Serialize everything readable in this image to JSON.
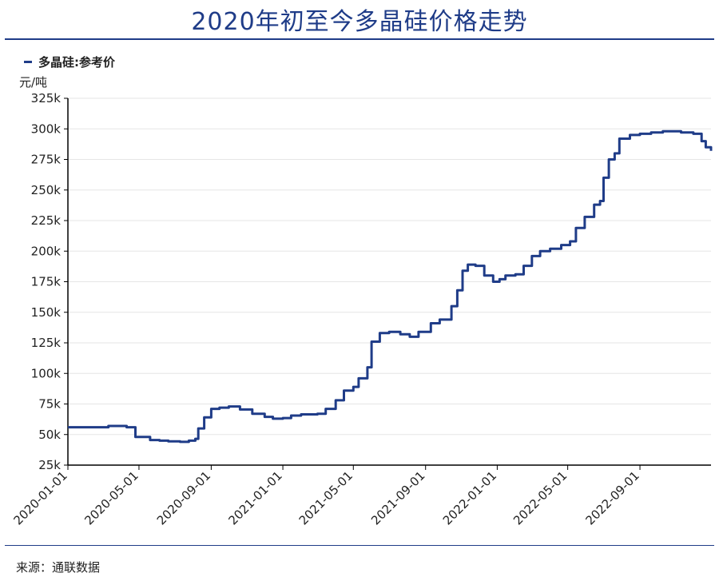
{
  "title": "2020年初至今多晶硅价格走势",
  "source": "来源：通联数据",
  "colors": {
    "accent": "#1f3c88",
    "grid": "#e6e6e6",
    "text": "#222222"
  },
  "chart_data": {
    "type": "line",
    "title": "2020年初至今多晶硅价格走势",
    "ylabel": "元/吨",
    "xlabel": "",
    "ylim": [
      25000,
      325000
    ],
    "xlim": [
      "2020-01-01",
      "2022-12-31"
    ],
    "yticks": [
      25000,
      50000,
      75000,
      100000,
      125000,
      150000,
      175000,
      200000,
      225000,
      250000,
      275000,
      300000,
      325000
    ],
    "ytick_labels": [
      "25k",
      "50k",
      "75k",
      "100k",
      "125k",
      "150k",
      "175k",
      "200k",
      "225k",
      "250k",
      "275k",
      "300k",
      "325k"
    ],
    "xticks": [
      "2020-01-01",
      "2020-05-01",
      "2020-09-01",
      "2021-01-01",
      "2021-05-01",
      "2021-09-01",
      "2022-01-01",
      "2022-05-01",
      "2022-09-01"
    ],
    "grid": true,
    "legend_position": "top-left",
    "series": [
      {
        "name": "多晶硅:参考价",
        "color": "#1f3c88",
        "points": [
          [
            "2020-01-01",
            56000
          ],
          [
            "2020-02-15",
            56000
          ],
          [
            "2020-03-10",
            57000
          ],
          [
            "2020-04-10",
            56000
          ],
          [
            "2020-04-25",
            48000
          ],
          [
            "2020-05-20",
            45500
          ],
          [
            "2020-06-05",
            45000
          ],
          [
            "2020-06-20",
            44500
          ],
          [
            "2020-07-10",
            44000
          ],
          [
            "2020-07-25",
            45000
          ],
          [
            "2020-08-05",
            46500
          ],
          [
            "2020-08-10",
            55000
          ],
          [
            "2020-08-20",
            64000
          ],
          [
            "2020-09-01",
            71000
          ],
          [
            "2020-09-15",
            72000
          ],
          [
            "2020-10-01",
            73000
          ],
          [
            "2020-10-20",
            70500
          ],
          [
            "2020-11-10",
            67000
          ],
          [
            "2020-12-01",
            64500
          ],
          [
            "2020-12-15",
            63000
          ],
          [
            "2021-01-01",
            63500
          ],
          [
            "2021-01-15",
            65500
          ],
          [
            "2021-02-01",
            66500
          ],
          [
            "2021-03-01",
            67000
          ],
          [
            "2021-03-15",
            71000
          ],
          [
            "2021-04-01",
            78000
          ],
          [
            "2021-04-15",
            86000
          ],
          [
            "2021-05-01",
            89000
          ],
          [
            "2021-05-10",
            96000
          ],
          [
            "2021-05-25",
            105000
          ],
          [
            "2021-06-01",
            126000
          ],
          [
            "2021-06-15",
            133000
          ],
          [
            "2021-07-01",
            134000
          ],
          [
            "2021-07-20",
            132000
          ],
          [
            "2021-08-05",
            130000
          ],
          [
            "2021-08-20",
            134000
          ],
          [
            "2021-09-10",
            141000
          ],
          [
            "2021-09-25",
            144000
          ],
          [
            "2021-10-08",
            144000
          ],
          [
            "2021-10-15",
            155000
          ],
          [
            "2021-10-25",
            168000
          ],
          [
            "2021-11-03",
            184000
          ],
          [
            "2021-11-12",
            189000
          ],
          [
            "2021-11-25",
            188000
          ],
          [
            "2021-12-10",
            180000
          ],
          [
            "2021-12-25",
            175000
          ],
          [
            "2022-01-05",
            177000
          ],
          [
            "2022-01-15",
            180000
          ],
          [
            "2022-02-01",
            181000
          ],
          [
            "2022-02-15",
            188000
          ],
          [
            "2022-03-01",
            196000
          ],
          [
            "2022-03-15",
            200000
          ],
          [
            "2022-04-01",
            202000
          ],
          [
            "2022-04-20",
            205000
          ],
          [
            "2022-05-05",
            208000
          ],
          [
            "2022-05-15",
            219000
          ],
          [
            "2022-05-30",
            228000
          ],
          [
            "2022-06-15",
            238000
          ],
          [
            "2022-06-25",
            241000
          ],
          [
            "2022-07-01",
            260000
          ],
          [
            "2022-07-10",
            275000
          ],
          [
            "2022-07-20",
            280000
          ],
          [
            "2022-07-28",
            292000
          ],
          [
            "2022-08-15",
            295000
          ],
          [
            "2022-09-01",
            296000
          ],
          [
            "2022-09-20",
            297000
          ],
          [
            "2022-10-10",
            298000
          ],
          [
            "2022-10-25",
            298000
          ],
          [
            "2022-11-10",
            297000
          ],
          [
            "2022-12-01",
            296000
          ],
          [
            "2022-12-15",
            290000
          ],
          [
            "2022-12-22",
            285000
          ],
          [
            "2022-12-31",
            282000
          ]
        ]
      }
    ]
  }
}
